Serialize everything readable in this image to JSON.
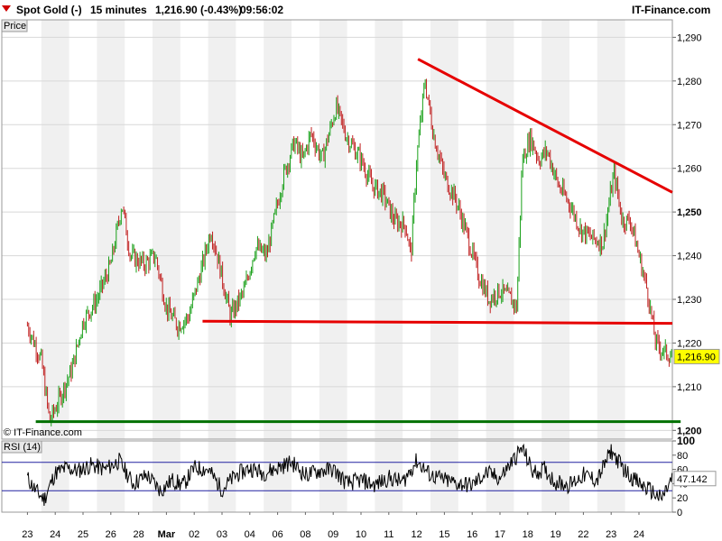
{
  "header": {
    "instrument": "Spot Gold (-)",
    "interval": "15 minutes",
    "quote": "1,216.90 (-0.43%)",
    "time": "09:56:02",
    "brand": "IT-Finance.com"
  },
  "colors": {
    "up": "#1aa01a",
    "down": "#c02020",
    "trendline": "#e60000",
    "support": "#007000",
    "rsi_line": "#000000",
    "rsi_bands": "#2020a0",
    "stripe": "#f0f0f0"
  },
  "chart_data": [
    {
      "type": "line",
      "panel": "Price",
      "title": "Spot Gold (-) 15 minutes",
      "copyright": "© IT-Finance.com",
      "ylabel": "",
      "ylim": [
        1198,
        1294
      ],
      "yticks": [
        1200,
        1210,
        1220,
        1230,
        1240,
        1250,
        1260,
        1270,
        1280,
        1290
      ],
      "ytick_labels": [
        "1,200",
        "1,210",
        "1,220",
        "1,230",
        "1,240",
        "1,250",
        "1,260",
        "1,270",
        "1,280",
        "1,290"
      ],
      "last_price_label": "1,216.90",
      "last_price": 1216.9,
      "x_day_labels": [
        "23",
        "24",
        "25",
        "26",
        "28",
        "Mar",
        "02",
        "03",
        "04",
        "06",
        "08",
        "09",
        "10",
        "11",
        "12",
        "15",
        "16",
        "17",
        "18",
        "19",
        "22",
        "23",
        "24"
      ],
      "series": [
        {
          "values": [
            [
              0,
              1224
            ],
            [
              0.5,
              1216
            ],
            [
              0.8,
              1202
            ],
            [
              1.2,
              1208
            ],
            [
              1.6,
              1214
            ],
            [
              2,
              1225
            ],
            [
              2.5,
              1230
            ],
            [
              3,
              1238
            ],
            [
              3.4,
              1252
            ],
            [
              3.7,
              1240
            ],
            [
              4.2,
              1238
            ],
            [
              4.6,
              1240
            ],
            [
              5,
              1228
            ],
            [
              5.4,
              1224
            ],
            [
              5.8,
              1226
            ],
            [
              6.3,
              1238
            ],
            [
              6.6,
              1246
            ],
            [
              6.9,
              1238
            ],
            [
              7.3,
              1226
            ],
            [
              7.8,
              1232
            ],
            [
              8.2,
              1242
            ],
            [
              8.6,
              1240
            ],
            [
              9.2,
              1258
            ],
            [
              9.6,
              1266
            ],
            [
              9.9,
              1262
            ],
            [
              10.2,
              1268
            ],
            [
              10.6,
              1262
            ],
            [
              11.1,
              1274
            ],
            [
              11.5,
              1267
            ],
            [
              12,
              1262
            ],
            [
              12.4,
              1256
            ],
            [
              12.8,
              1254
            ],
            [
              13.2,
              1248
            ],
            [
              13.6,
              1247
            ],
            [
              13.8,
              1240
            ],
            [
              14,
              1262
            ],
            [
              14.3,
              1280
            ],
            [
              14.6,
              1268
            ],
            [
              15,
              1258
            ],
            [
              15.4,
              1253
            ],
            [
              15.8,
              1245
            ],
            [
              16.2,
              1236
            ],
            [
              16.6,
              1230
            ],
            [
              17,
              1232
            ],
            [
              17.4,
              1230
            ],
            [
              17.6,
              1228
            ],
            [
              17.8,
              1262
            ],
            [
              18.1,
              1267
            ],
            [
              18.4,
              1262
            ],
            [
              18.7,
              1264
            ],
            [
              19.1,
              1256
            ],
            [
              19.5,
              1252
            ],
            [
              19.9,
              1246
            ],
            [
              20.3,
              1244
            ],
            [
              20.7,
              1243
            ],
            [
              21.1,
              1259
            ],
            [
              21.4,
              1248
            ],
            [
              21.7,
              1248
            ],
            [
              22,
              1240
            ],
            [
              22.3,
              1232
            ],
            [
              22.6,
              1220
            ],
            [
              22.9,
              1218
            ],
            [
              23.2,
              1216.9
            ]
          ]
        }
      ],
      "annotations": [
        {
          "type": "trendline",
          "from": [
            6.3,
            1225
          ],
          "to": [
            23.2,
            1224.5
          ]
        },
        {
          "type": "trendline",
          "from": [
            14.05,
            1285
          ],
          "to": [
            23.2,
            1254.5
          ]
        },
        {
          "type": "trendline",
          "from": [
            0.3,
            1202
          ],
          "to": [
            23.5,
            1202
          ]
        }
      ],
      "grid": true
    },
    {
      "type": "line",
      "panel": "RSI (14)",
      "title": "RSI (14)",
      "ylim": [
        0,
        100
      ],
      "yticks": [
        0,
        20,
        40,
        60,
        80,
        100
      ],
      "ytick_labels": [
        "0",
        "20",
        "40",
        "60",
        "80",
        "100"
      ],
      "bands": [
        30,
        70
      ],
      "last_value_label": "47.142",
      "last_value": 47.142,
      "series": [
        {
          "values": [
            [
              0,
              48
            ],
            [
              0.3,
              30
            ],
            [
              0.6,
              18
            ],
            [
              1,
              55
            ],
            [
              1.4,
              62
            ],
            [
              1.8,
              58
            ],
            [
              2.3,
              66
            ],
            [
              2.8,
              60
            ],
            [
              3.3,
              72
            ],
            [
              3.8,
              40
            ],
            [
              4.3,
              52
            ],
            [
              4.8,
              30
            ],
            [
              5.2,
              45
            ],
            [
              5.6,
              38
            ],
            [
              6,
              62
            ],
            [
              6.5,
              60
            ],
            [
              7,
              32
            ],
            [
              7.5,
              52
            ],
            [
              8,
              62
            ],
            [
              8.5,
              55
            ],
            [
              9,
              62
            ],
            [
              9.5,
              70
            ],
            [
              10,
              52
            ],
            [
              10.5,
              58
            ],
            [
              11,
              60
            ],
            [
              11.5,
              40
            ],
            [
              12,
              45
            ],
            [
              12.5,
              38
            ],
            [
              13,
              48
            ],
            [
              13.5,
              42
            ],
            [
              14,
              72
            ],
            [
              14.5,
              52
            ],
            [
              15,
              45
            ],
            [
              15.5,
              40
            ],
            [
              16,
              38
            ],
            [
              16.5,
              55
            ],
            [
              17,
              48
            ],
            [
              17.8,
              90
            ],
            [
              18.2,
              55
            ],
            [
              18.6,
              60
            ],
            [
              19,
              42
            ],
            [
              19.5,
              38
            ],
            [
              20,
              52
            ],
            [
              20.5,
              45
            ],
            [
              21,
              86
            ],
            [
              21.5,
              58
            ],
            [
              22,
              40
            ],
            [
              22.5,
              28
            ],
            [
              22.8,
              18
            ],
            [
              23.2,
              47.142
            ]
          ]
        }
      ]
    }
  ]
}
